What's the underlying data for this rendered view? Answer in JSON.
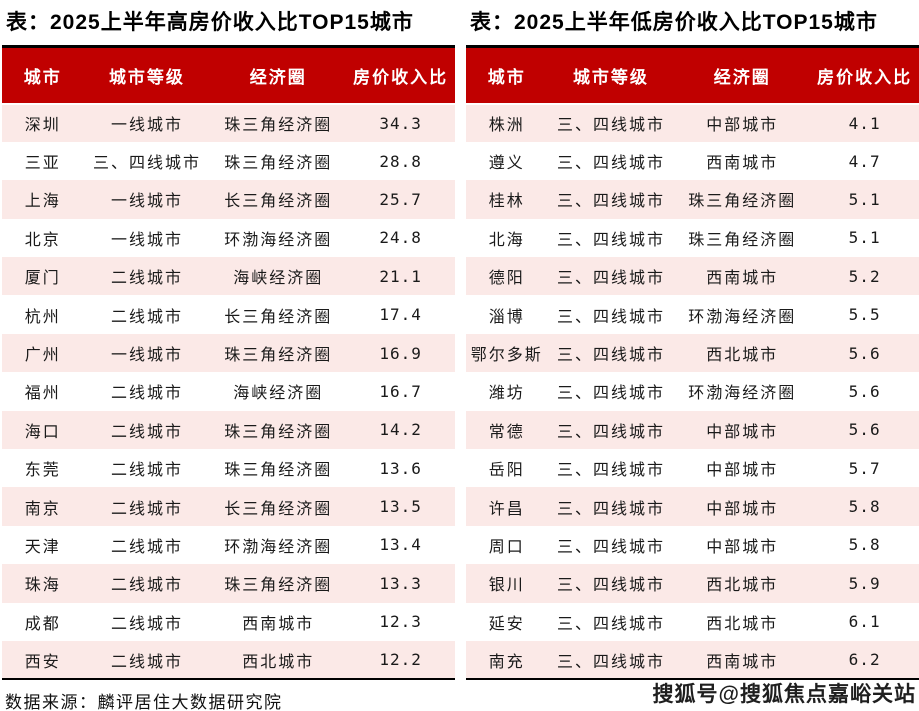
{
  "colors": {
    "header_red": "#C00000",
    "row_pink": "#FBE9E7",
    "border_black": "#000000",
    "text_black": "#1A1A1A"
  },
  "footer": {
    "source": "数据来源：麟评居住大数据研究院"
  },
  "watermark": {
    "text": "搜狐号@搜狐焦点嘉峪关站"
  },
  "chart_data": [
    {
      "type": "table",
      "title": "表：2025上半年高房价收入比TOP15城市",
      "columns": [
        "城市",
        "城市等级",
        "经济圈",
        "房价收入比"
      ],
      "rows": [
        [
          "深圳",
          "一线城市",
          "珠三角经济圈",
          "34.3"
        ],
        [
          "三亚",
          "三、四线城市",
          "珠三角经济圈",
          "28.8"
        ],
        [
          "上海",
          "一线城市",
          "长三角经济圈",
          "25.7"
        ],
        [
          "北京",
          "一线城市",
          "环渤海经济圈",
          "24.8"
        ],
        [
          "厦门",
          "二线城市",
          "海峡经济圈",
          "21.1"
        ],
        [
          "杭州",
          "二线城市",
          "长三角经济圈",
          "17.4"
        ],
        [
          "广州",
          "一线城市",
          "珠三角经济圈",
          "16.9"
        ],
        [
          "福州",
          "二线城市",
          "海峡经济圈",
          "16.7"
        ],
        [
          "海口",
          "二线城市",
          "珠三角经济圈",
          "14.2"
        ],
        [
          "东莞",
          "二线城市",
          "珠三角经济圈",
          "13.6"
        ],
        [
          "南京",
          "二线城市",
          "长三角经济圈",
          "13.5"
        ],
        [
          "天津",
          "二线城市",
          "环渤海经济圈",
          "13.4"
        ],
        [
          "珠海",
          "二线城市",
          "珠三角经济圈",
          "13.3"
        ],
        [
          "成都",
          "二线城市",
          "西南城市",
          "12.3"
        ],
        [
          "西安",
          "二线城市",
          "西北城市",
          "12.2"
        ]
      ]
    },
    {
      "type": "table",
      "title": "表：2025上半年低房价收入比TOP15城市",
      "columns": [
        "城市",
        "城市等级",
        "经济圈",
        "房价收入比"
      ],
      "rows": [
        [
          "株洲",
          "三、四线城市",
          "中部城市",
          "4.1"
        ],
        [
          "遵义",
          "三、四线城市",
          "西南城市",
          "4.7"
        ],
        [
          "桂林",
          "三、四线城市",
          "珠三角经济圈",
          "5.1"
        ],
        [
          "北海",
          "三、四线城市",
          "珠三角经济圈",
          "5.1"
        ],
        [
          "德阳",
          "三、四线城市",
          "西南城市",
          "5.2"
        ],
        [
          "淄博",
          "三、四线城市",
          "环渤海经济圈",
          "5.5"
        ],
        [
          "鄂尔多斯",
          "三、四线城市",
          "西北城市",
          "5.6"
        ],
        [
          "潍坊",
          "三、四线城市",
          "环渤海经济圈",
          "5.6"
        ],
        [
          "常德",
          "三、四线城市",
          "中部城市",
          "5.6"
        ],
        [
          "岳阳",
          "三、四线城市",
          "中部城市",
          "5.7"
        ],
        [
          "许昌",
          "三、四线城市",
          "中部城市",
          "5.8"
        ],
        [
          "周口",
          "三、四线城市",
          "中部城市",
          "5.8"
        ],
        [
          "银川",
          "三、四线城市",
          "西北城市",
          "5.9"
        ],
        [
          "延安",
          "三、四线城市",
          "西北城市",
          "6.1"
        ],
        [
          "南充",
          "三、四线城市",
          "西南城市",
          "6.2"
        ]
      ]
    }
  ]
}
